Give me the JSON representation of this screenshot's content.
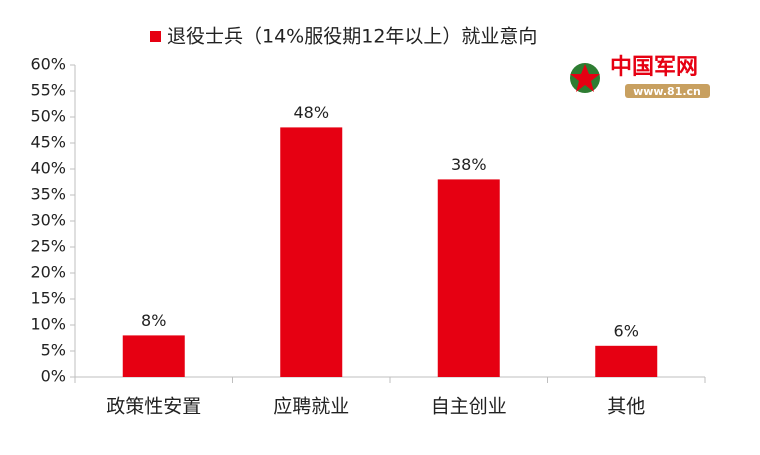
{
  "chart_data": {
    "type": "bar",
    "categories": [
      "政策性安置",
      "应聘就业",
      "自主创业",
      "其他"
    ],
    "series": [
      {
        "name": "退役士兵（14%服役期12年以上）就业意向",
        "color": "#e60012",
        "values": [
          8,
          48,
          38,
          6
        ],
        "value_labels": [
          "8%",
          "48%",
          "38%",
          "6%"
        ]
      }
    ],
    "ylim": [
      0,
      60
    ],
    "yticks": [
      {
        "value": 0,
        "label": "0%"
      },
      {
        "value": 5,
        "label": "5%"
      },
      {
        "value": 10,
        "label": "10%"
      },
      {
        "value": 15,
        "label": "15%"
      },
      {
        "value": 20,
        "label": "20%"
      },
      {
        "value": 25,
        "label": "25%"
      },
      {
        "value": 30,
        "label": "30%"
      },
      {
        "value": 35,
        "label": "35%"
      },
      {
        "value": 40,
        "label": "40%"
      },
      {
        "value": 45,
        "label": "45%"
      },
      {
        "value": 50,
        "label": "50%"
      },
      {
        "value": 55,
        "label": "55%"
      },
      {
        "value": 60,
        "label": "60%"
      }
    ],
    "grid": false,
    "legend": "top"
  },
  "watermark": {
    "name": "中国军网",
    "url": "www.81.cn"
  }
}
